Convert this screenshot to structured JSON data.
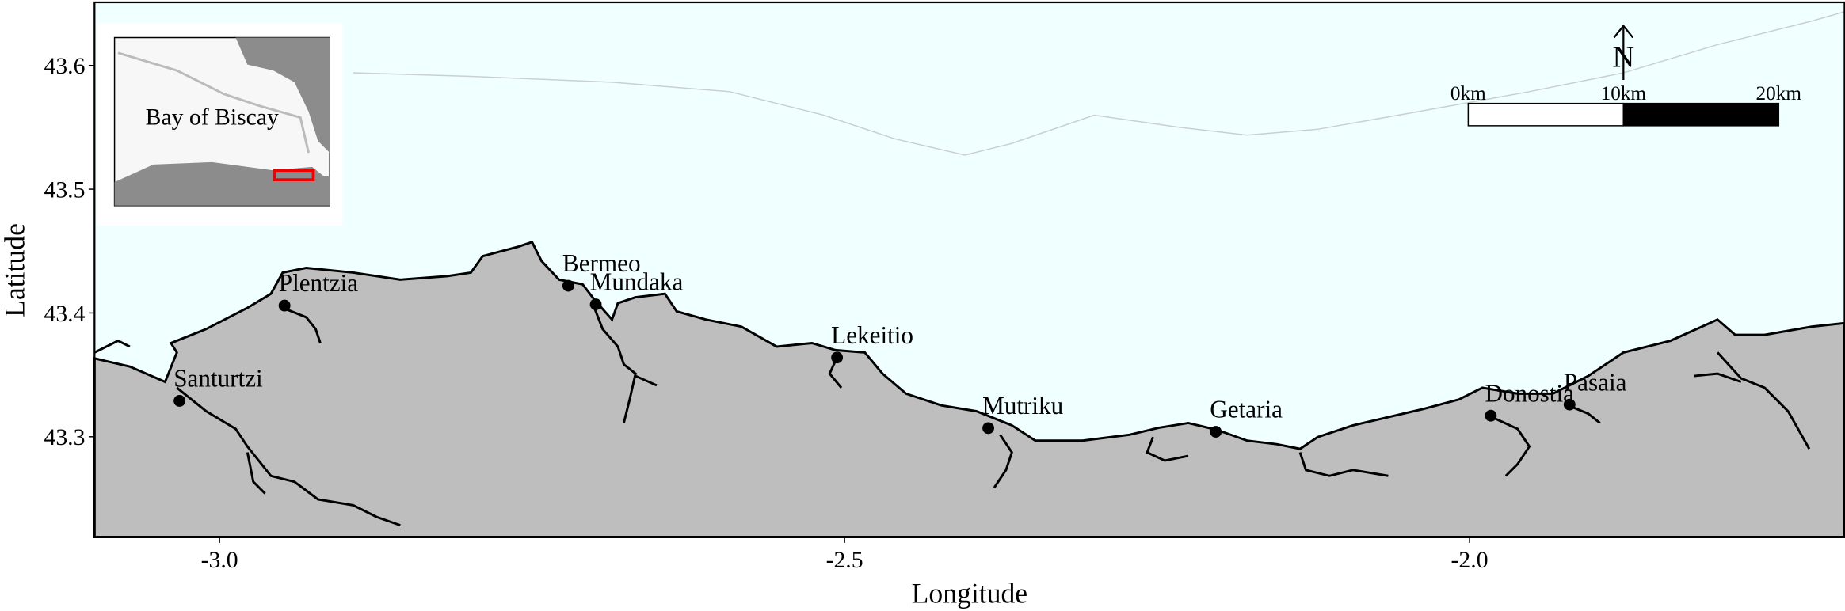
{
  "chart_data": {
    "type": "map",
    "xlabel": "Longitude",
    "ylabel": "Latitude",
    "xlim": [
      -3.1,
      -1.7
    ],
    "ylim": [
      43.219,
      43.651
    ],
    "xticks": [
      {
        "value": -3,
        "label": "-3.0"
      },
      {
        "value": -2.5,
        "label": "-2.5"
      },
      {
        "value": -2,
        "label": "-2.0"
      }
    ],
    "yticks": [
      43.3,
      43.4,
      43.5,
      43.6
    ],
    "points": {
      "names": [
        "Santurtzi",
        "Plentzia",
        "Bermeo",
        "Mundaka",
        "Lekeitio",
        "Mutriku",
        "Getaria",
        "Donostia",
        "Pasaia"
      ],
      "x": [
        -3.032,
        -2.948,
        -2.721,
        -2.699,
        -2.506,
        -2.385,
        -2.203,
        -1.983,
        -1.92
      ],
      "y": [
        43.329,
        43.406,
        43.422,
        43.407,
        43.364,
        43.307,
        43.304,
        43.317,
        43.326
      ],
      "color": "#000000"
    },
    "inset_label": "Bay of Biscay",
    "scalebar_labels": [
      "0km",
      "10km",
      "20km"
    ],
    "north_label": "N"
  }
}
